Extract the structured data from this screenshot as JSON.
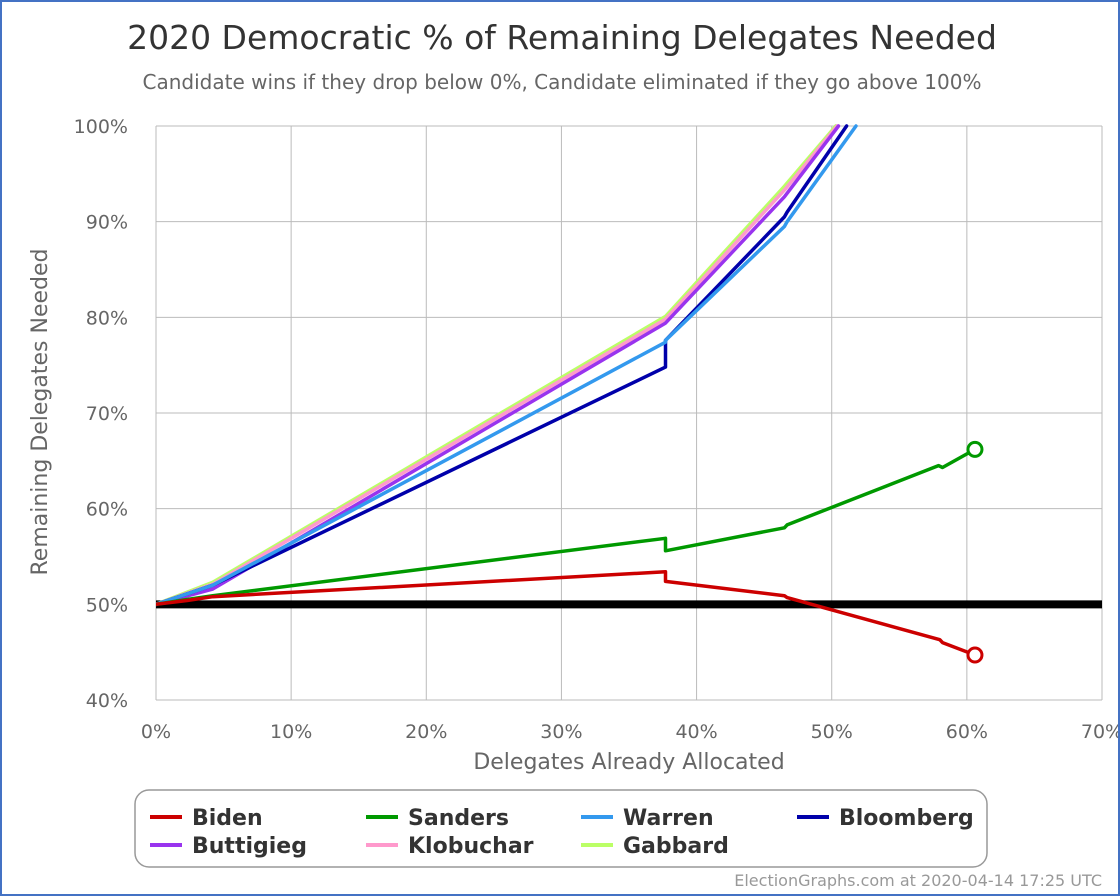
{
  "chart_data": {
    "type": "line",
    "title": "2020 Democratic % of Remaining Delegates Needed",
    "subtitle": "Candidate wins if they drop below 0%, Candidate eliminated if they go above 100%",
    "xlabel": "Delegates Already Allocated",
    "ylabel": "Remaining Delegates Needed",
    "xlim": [
      0,
      70
    ],
    "ylim": [
      40,
      100
    ],
    "x_ticks": [
      "0%",
      "10%",
      "20%",
      "30%",
      "40%",
      "50%",
      "60%",
      "70%"
    ],
    "y_ticks": [
      "40%",
      "50%",
      "60%",
      "70%",
      "80%",
      "90%",
      "100%"
    ],
    "grid": true,
    "legend_position": "bottom",
    "reference_line": {
      "y": 50,
      "color": "#000000"
    },
    "series": [
      {
        "name": "Biden",
        "color": "#cc0000",
        "end_marker": true,
        "x": [
          0,
          2.3,
          4.2,
          37.7,
          37.7,
          46.5,
          46.7,
          58.0,
          58.2,
          60.6
        ],
        "y": [
          50.0,
          50.4,
          50.8,
          53.4,
          52.4,
          50.9,
          50.7,
          46.3,
          46.0,
          44.7
        ]
      },
      {
        "name": "Sanders",
        "color": "#009900",
        "end_marker": true,
        "x": [
          0,
          2.3,
          4.2,
          37.7,
          37.7,
          46.5,
          46.7,
          57.9,
          58.2,
          60.6
        ],
        "y": [
          50.0,
          50.5,
          50.9,
          56.9,
          55.6,
          58.0,
          58.3,
          64.5,
          64.3,
          66.2
        ]
      },
      {
        "name": "Warren",
        "color": "#3399ee",
        "end_marker": false,
        "x": [
          0,
          4.2,
          37.7,
          37.7,
          46.5,
          46.7,
          51.8
        ],
        "y": [
          50.0,
          52.0,
          77.4,
          77.6,
          89.5,
          90.0,
          100
        ]
      },
      {
        "name": "Bloomberg",
        "color": "#0000aa",
        "end_marker": false,
        "x": [
          0,
          4.2,
          37.7,
          37.7,
          46.5,
          46.7,
          51.1
        ],
        "y": [
          50.0,
          52.0,
          74.8,
          77.6,
          90.5,
          91.0,
          100
        ]
      },
      {
        "name": "Buttigieg",
        "color": "#9933ee",
        "end_marker": false,
        "x": [
          0,
          4.2,
          37.7,
          46.5,
          50.5
        ],
        "y": [
          50.0,
          51.6,
          79.4,
          92.6,
          100
        ]
      },
      {
        "name": "Klobuchar",
        "color": "#ff99cc",
        "end_marker": false,
        "x": [
          0,
          4.2,
          37.7,
          46.5,
          50.4
        ],
        "y": [
          50.0,
          52.1,
          79.8,
          93.3,
          100
        ]
      },
      {
        "name": "Gabbard",
        "color": "#bbff66",
        "end_marker": false,
        "x": [
          0,
          4.2,
          37.7,
          46.5,
          50.3
        ],
        "y": [
          50.0,
          52.3,
          80.1,
          93.7,
          100
        ]
      }
    ],
    "legend_order": [
      "Biden",
      "Sanders",
      "Warren",
      "Bloomberg",
      "Buttigieg",
      "Klobuchar",
      "Gabbard"
    ]
  },
  "credit": "ElectionGraphs.com at 2020-04-14 17:25 UTC"
}
